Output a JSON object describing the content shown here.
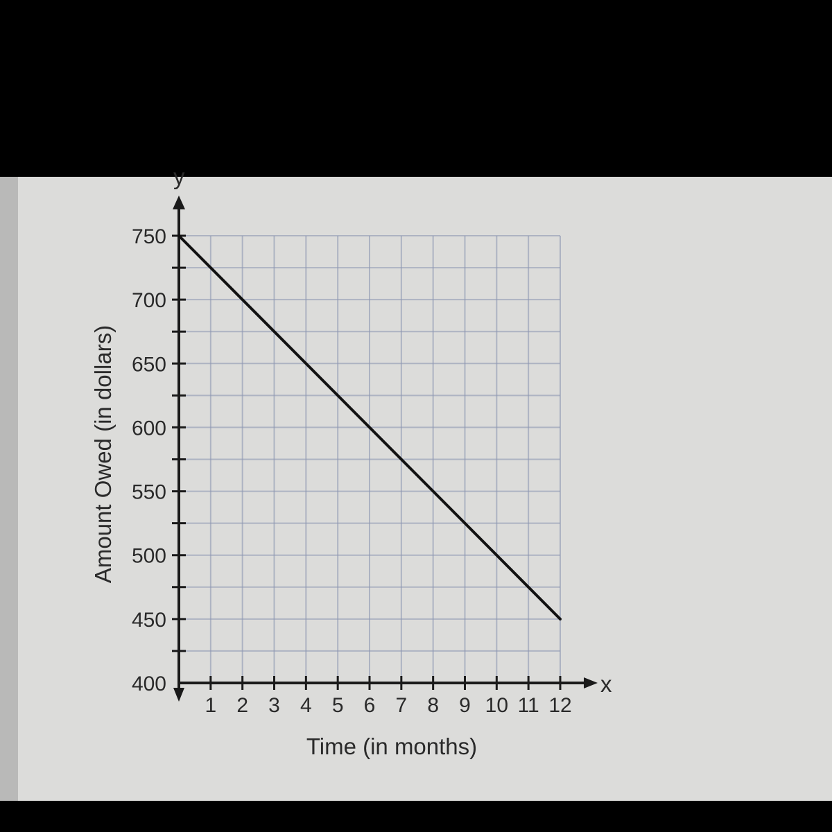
{
  "chart_data": {
    "type": "line",
    "xlabel": "Time (in months)",
    "ylabel": "Amount Owed (in dollars)",
    "x_axis_letter": "x",
    "y_axis_letter": "y",
    "xlim": [
      0,
      12
    ],
    "ylim": [
      400,
      750
    ],
    "x_ticks": [
      "1",
      "2",
      "3",
      "4",
      "5",
      "6",
      "7",
      "8",
      "9",
      "10",
      "11",
      "12"
    ],
    "y_ticks": [
      "400",
      "450",
      "500",
      "550",
      "600",
      "650",
      "700",
      "750"
    ],
    "grid": true,
    "series": [
      {
        "x": [
          0,
          12
        ],
        "y": [
          750,
          450
        ]
      }
    ],
    "colors": {
      "line": "#111111",
      "grid": "#8f98b3",
      "background": "#dcdcda"
    }
  }
}
